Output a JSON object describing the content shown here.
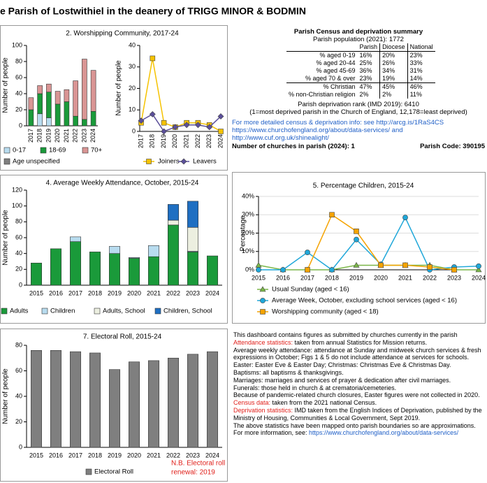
{
  "header": {
    "title": "e Parish of Lostwithiel in the deanery of TRIGG MINOR & BODMIN"
  },
  "chart_data": [
    {
      "type": "stacked-bar",
      "title": "2. Worshipping Community, 2017-24",
      "y_label": "Number of people",
      "categories": [
        "2017",
        "2018",
        "2019",
        "2020",
        "2021",
        "2022",
        "2023",
        "2024"
      ],
      "series": [
        {
          "name": "0-17",
          "color": "#b8dcef",
          "values": [
            0,
            15,
            10,
            0,
            0,
            0,
            0,
            0
          ]
        },
        {
          "name": "18-69",
          "color": "#1a9a3a",
          "values": [
            20,
            25,
            32,
            27,
            30,
            12,
            8,
            18
          ]
        },
        {
          "name": "70+",
          "color": "#d99594",
          "values": [
            15,
            10,
            10,
            16,
            15,
            44,
            75,
            51
          ]
        },
        {
          "name": "Age unspecified",
          "color": "#7f7f7f",
          "values": [
            0,
            0,
            0,
            0,
            0,
            0,
            0,
            0
          ]
        }
      ],
      "ylim": [
        0,
        100
      ],
      "yticks": [
        0,
        20,
        40,
        60,
        80,
        100
      ]
    },
    {
      "type": "line",
      "y_label": "Number of people",
      "categories": [
        "2017",
        "2018",
        "2019",
        "2020",
        "2021",
        "2022",
        "2023",
        "2024"
      ],
      "series": [
        {
          "name": "Joiners",
          "color": "#f5c200",
          "marker": "square",
          "values": [
            4,
            34,
            4,
            2,
            4,
            4,
            3,
            0
          ]
        },
        {
          "name": "Leavers",
          "color": "#5b4f9a",
          "marker": "diamond",
          "values": [
            5,
            8,
            0,
            2,
            3,
            3,
            2,
            7
          ]
        }
      ],
      "ylim": [
        0,
        40
      ],
      "yticks": [
        0,
        10,
        20,
        30,
        40
      ]
    },
    {
      "type": "stacked-bar",
      "title": "4. Average Weekly Attendance, October, 2015-24",
      "y_label": "Number of people",
      "categories": [
        "2015",
        "2016",
        "2017",
        "2018",
        "2019",
        "2020",
        "2021",
        "2022",
        "2023",
        "2024"
      ],
      "series": [
        {
          "name": "Adults",
          "color": "#1a9a3a",
          "values": [
            28,
            46,
            55,
            42,
            40,
            34,
            36,
            76,
            42,
            37
          ]
        },
        {
          "name": "Children",
          "color": "#b8dcef",
          "values": [
            0,
            0,
            6,
            0,
            9,
            1,
            14,
            0,
            1,
            0
          ]
        },
        {
          "name": "Adults, School",
          "color": "#ecefe0",
          "values": [
            0,
            0,
            0,
            0,
            0,
            0,
            0,
            6,
            30,
            0
          ]
        },
        {
          "name": "Children, School",
          "color": "#1f6fc2",
          "values": [
            0,
            0,
            0,
            0,
            0,
            0,
            0,
            20,
            33,
            0
          ]
        }
      ],
      "ylim": [
        0,
        120
      ],
      "yticks": [
        0,
        20,
        40,
        60,
        80,
        100,
        120
      ]
    },
    {
      "type": "line",
      "title": "5. Percentage Children, 2015-24",
      "y_label": "Percentage",
      "categories": [
        "2015",
        "2016",
        "2017",
        "2018",
        "2019",
        "2020",
        "2021",
        "2022",
        "2023",
        "2024"
      ],
      "series": [
        {
          "name": "Usual Sunday (aged < 16)",
          "color": "#7ab648",
          "marker": "triangle",
          "values": [
            2.5,
            0,
            0,
            0,
            2.5,
            2.5,
            2.5,
            2.5,
            0,
            0
          ]
        },
        {
          "name": "Average Week, October, excluding school services (aged < 16)",
          "color": "#1fa7d9",
          "marker": "circle",
          "values": [
            0,
            0,
            9.5,
            0,
            16.5,
            3,
            28.5,
            0,
            1.5,
            2
          ]
        },
        {
          "name": "Worshipping community (aged < 18)",
          "color": "#f5a300",
          "marker": "square",
          "values": [
            null,
            null,
            0,
            30,
            21,
            2.5,
            2.5,
            1.5,
            0,
            null
          ]
        }
      ],
      "ylim": [
        0,
        40
      ],
      "yticks": [
        {
          "value": 0,
          "label": "0%"
        },
        {
          "value": 10,
          "label": "10%"
        },
        {
          "value": 20,
          "label": "20%"
        },
        {
          "value": 30,
          "label": "30%"
        },
        {
          "value": 40,
          "label": "40%"
        }
      ]
    },
    {
      "type": "bar",
      "title": "7. Electoral Roll, 2015-24",
      "y_label": "Number of people",
      "categories": [
        "2015",
        "2016",
        "2017",
        "2018",
        "2019",
        "2020",
        "2021",
        "2022",
        "2023",
        "2024"
      ],
      "series": [
        {
          "name": "Electoral Roll",
          "color": "#7f7f7f",
          "values": [
            76,
            76,
            75,
            74,
            61,
            67,
            68,
            70,
            73,
            75
          ]
        }
      ],
      "ylim": [
        0,
        80
      ],
      "yticks": [
        0,
        20,
        40,
        60,
        80
      ],
      "annotation": [
        "N.B. Electoral roll",
        "renewal: 2019"
      ]
    }
  ],
  "census": {
    "title": "Parish Census and deprivation summary",
    "population": "Parish population (2021): 1772",
    "columns": [
      "Parish",
      "Diocese",
      "National"
    ],
    "rows": [
      [
        "% aged 0-19",
        "16%",
        "20%",
        "23%"
      ],
      [
        "% aged 20-44",
        "25%",
        "26%",
        "33%"
      ],
      [
        "% aged 45-69",
        "36%",
        "34%",
        "31%"
      ],
      [
        "% aged 70 & over",
        "23%",
        "19%",
        "14%"
      ],
      [
        "% Christian",
        "47%",
        "45%",
        "46%"
      ],
      [
        "% non-Christian religion",
        "2%",
        "2%",
        "11%"
      ]
    ],
    "deprivation": "Parish deprivation rank (IMD 2019): 6410",
    "deprivation_note": "(1=most deprived parish in the Church of England, 12,178=least deprived)",
    "links": [
      "For more detailed census & deprivation info: see http://arcg.is/1RaS4CS",
      "https://www.churchofengland.org/about/data-services/ and",
      "http://www.cuf.org.uk/shinealight/"
    ],
    "churches": "Number of churches in parish (2024): 1",
    "code": "Parish Code: 390195"
  },
  "notes": [
    {
      "text": "This dashboard contains figures as submitted by churches currently in the parish"
    },
    {
      "label": "Attendance statistics:",
      "text": " taken from annual Statistics for Mission returns."
    },
    {
      "text": "Average weekly attendance: attendance at Sunday and midweek church services & fresh expressions in October; Figs 1 & 5 do not include attendance at services for schools."
    },
    {
      "text": "Easter: Easter Eve & Easter Day; Christmas: Christmas Eve & Christmas Day."
    },
    {
      "text": "Baptisms: all baptisms & thanksgivings."
    },
    {
      "text": "Marriages: marriages and services of prayer & dedication after civil marriages."
    },
    {
      "text": "Funerals: those held in church & at crematoria/cemeteries."
    },
    {
      "text": "Because of pandemic-related church closures, Easter figures were not collected in 2020."
    },
    {
      "label": "Census data:",
      "text": " taken from the 2021 national Census."
    },
    {
      "label": " Deprivation statistics:",
      "text": " IMD taken from the English Indices of Deprivation, published by the Ministry of Housing, Communities & Local Government, Sept 2019."
    },
    {
      "text": "The above statistics have been mapped onto parish boundaries so are approximations."
    },
    {
      "text": "For more information, see: ",
      "link": "https://www.churchofengland.org/about/data-services/"
    }
  ]
}
